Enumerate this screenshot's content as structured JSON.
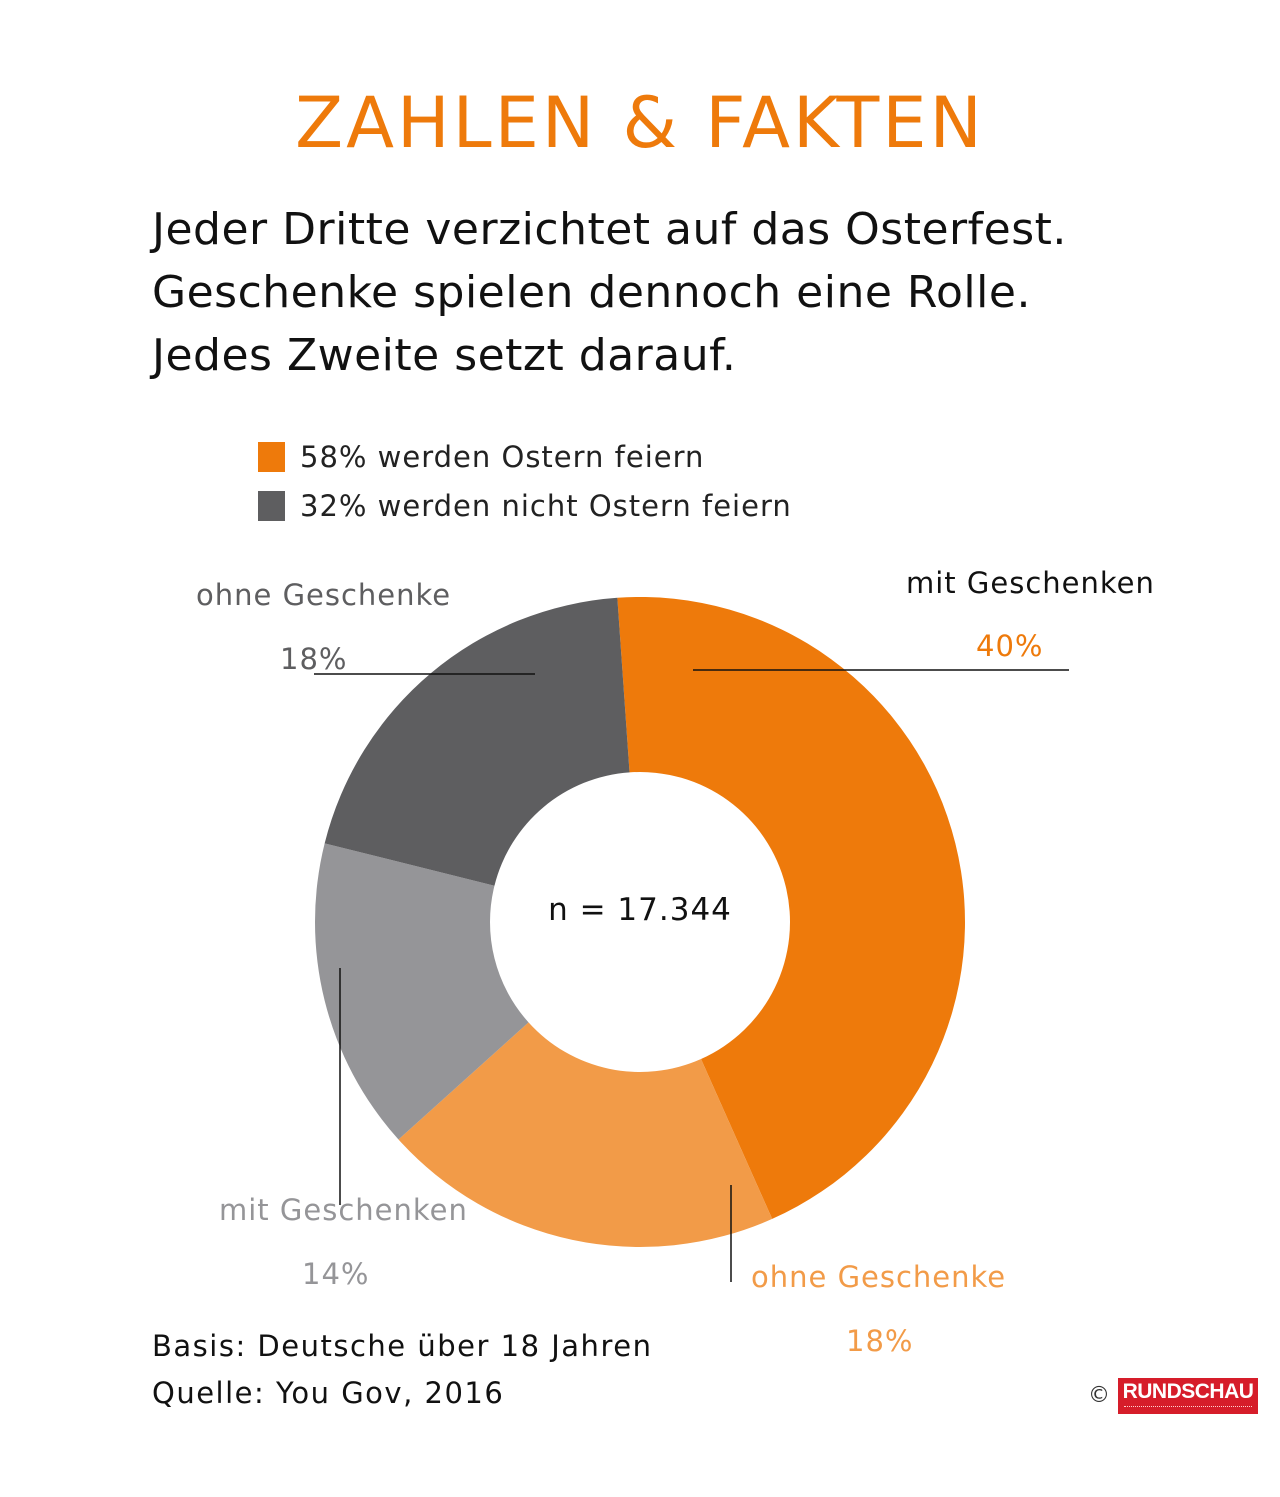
{
  "title": "ZAHLEN & FAKTEN",
  "subtitle_lines": [
    "Jeder Dritte verzichtet auf das Osterfest.",
    "Geschenke spielen dennoch eine Rolle.",
    "Jedes Zweite setzt darauf."
  ],
  "legend": [
    {
      "label": "58% werden Ostern feiern",
      "color": "#ee7a0b"
    },
    {
      "label": "32% werden nicht Ostern feiern",
      "color": "#5e5e60"
    }
  ],
  "chart_data": {
    "type": "pie",
    "variant": "donut",
    "center_label": "n = 17.344",
    "slices": [
      {
        "group": "mit Geschenken",
        "value": 40,
        "value_label": "40%",
        "color": "#ee7a0b",
        "label_color": "#111111",
        "value_color": "#ee7a0b"
      },
      {
        "group": "ohne Geschenke",
        "value": 18,
        "value_label": "18%",
        "color": "#f29b48",
        "label_color": "#f29b48",
        "value_color": "#f29b48"
      },
      {
        "group": "mit Geschenken",
        "value": 14,
        "value_label": "14%",
        "color": "#959598",
        "label_color": "#959598",
        "value_color": "#959598"
      },
      {
        "group": "ohne Geschenke",
        "value": 18,
        "value_label": "18%",
        "color": "#5e5e60",
        "label_color": "#5e5e60",
        "value_color": "#5e5e60"
      }
    ]
  },
  "footer": {
    "basis": "Basis: Deutsche über 18 Jahren",
    "quelle": "Quelle: You Gov, 2016",
    "copyright": "©",
    "logo": "RUNDSCHAU"
  }
}
